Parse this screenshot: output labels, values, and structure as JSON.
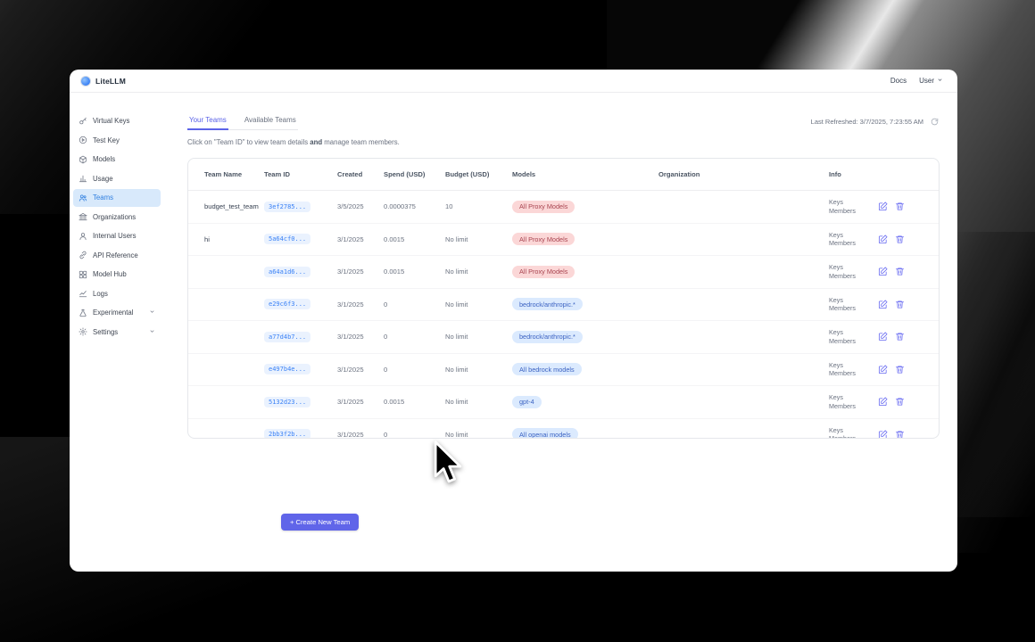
{
  "header": {
    "brand": "LiteLLM",
    "docs_label": "Docs",
    "user_label": "User"
  },
  "sidebar": {
    "items": [
      {
        "label": "Virtual Keys",
        "icon": "key-icon",
        "active": false,
        "chevron": false
      },
      {
        "label": "Test Key",
        "icon": "play-circle-icon",
        "active": false,
        "chevron": false
      },
      {
        "label": "Models",
        "icon": "cube-icon",
        "active": false,
        "chevron": false
      },
      {
        "label": "Usage",
        "icon": "bar-chart-icon",
        "active": false,
        "chevron": false
      },
      {
        "label": "Teams",
        "icon": "users-icon",
        "active": true,
        "chevron": false
      },
      {
        "label": "Organizations",
        "icon": "bank-icon",
        "active": false,
        "chevron": false
      },
      {
        "label": "Internal Users",
        "icon": "user-icon",
        "active": false,
        "chevron": false
      },
      {
        "label": "API Reference",
        "icon": "link-icon",
        "active": false,
        "chevron": false
      },
      {
        "label": "Model Hub",
        "icon": "grid-icon",
        "active": false,
        "chevron": false
      },
      {
        "label": "Logs",
        "icon": "line-chart-icon",
        "active": false,
        "chevron": false
      },
      {
        "label": "Experimental",
        "icon": "flask-icon",
        "active": false,
        "chevron": true
      },
      {
        "label": "Settings",
        "icon": "gear-icon",
        "active": false,
        "chevron": true
      }
    ]
  },
  "tabs": [
    {
      "label": "Your Teams",
      "active": true
    },
    {
      "label": "Available Teams",
      "active": false
    }
  ],
  "last_refreshed": "Last Refreshed: 3/7/2025, 7:23:55 AM",
  "description": {
    "before_bold": "Click on \"Team ID\" to view team details ",
    "bold": "and",
    "after_bold": " manage team members."
  },
  "table": {
    "columns": [
      "Team Name",
      "Team ID",
      "Created",
      "Spend (USD)",
      "Budget (USD)",
      "Models",
      "Organization",
      "Info",
      ""
    ],
    "info_links": [
      "Keys",
      "Members"
    ],
    "rows": [
      {
        "team_name": "budget_test_team",
        "team_id": "3ef2785...",
        "created": "3/5/2025",
        "spend": "0.0000375",
        "budget": "10",
        "model": "All Proxy Models",
        "model_color": "red",
        "organization": ""
      },
      {
        "team_name": "hi",
        "team_id": "5a64cf0...",
        "created": "3/1/2025",
        "spend": "0.0015",
        "budget": "No limit",
        "model": "All Proxy Models",
        "model_color": "red",
        "organization": ""
      },
      {
        "team_name": "",
        "team_id": "a64a1d6...",
        "created": "3/1/2025",
        "spend": "0.0015",
        "budget": "No limit",
        "model": "All Proxy Models",
        "model_color": "red",
        "organization": ""
      },
      {
        "team_name": "",
        "team_id": "e29c6f3...",
        "created": "3/1/2025",
        "spend": "0",
        "budget": "No limit",
        "model": "bedrock/anthropic.*",
        "model_color": "blue",
        "organization": ""
      },
      {
        "team_name": "",
        "team_id": "a77d4b7...",
        "created": "3/1/2025",
        "spend": "0",
        "budget": "No limit",
        "model": "bedrock/anthropic.*",
        "model_color": "blue",
        "organization": ""
      },
      {
        "team_name": "",
        "team_id": "e497b4e...",
        "created": "3/1/2025",
        "spend": "0",
        "budget": "No limit",
        "model": "All bedrock models",
        "model_color": "blue",
        "organization": ""
      },
      {
        "team_name": "",
        "team_id": "5132d23...",
        "created": "3/1/2025",
        "spend": "0.0015",
        "budget": "No limit",
        "model": "gpt-4",
        "model_color": "blue",
        "organization": ""
      },
      {
        "team_name": "",
        "team_id": "2bb3f2b...",
        "created": "3/1/2025",
        "spend": "0",
        "budget": "No limit",
        "model": "All openai models",
        "model_color": "blue",
        "organization": ""
      }
    ]
  },
  "create_button_label": "+ Create New Team",
  "colors": {
    "accent_indigo": "#6366f1",
    "active_tab": "#5b63e8",
    "sidebar_active_bg": "#d8e9fb",
    "sidebar_active_text": "#2f7fe0",
    "badge_red_bg": "#fbd7d7",
    "badge_red_text": "#a94450",
    "badge_blue_bg": "#dbeafe",
    "badge_blue_text": "#3b62c2",
    "team_id_text": "#3b82f6"
  }
}
